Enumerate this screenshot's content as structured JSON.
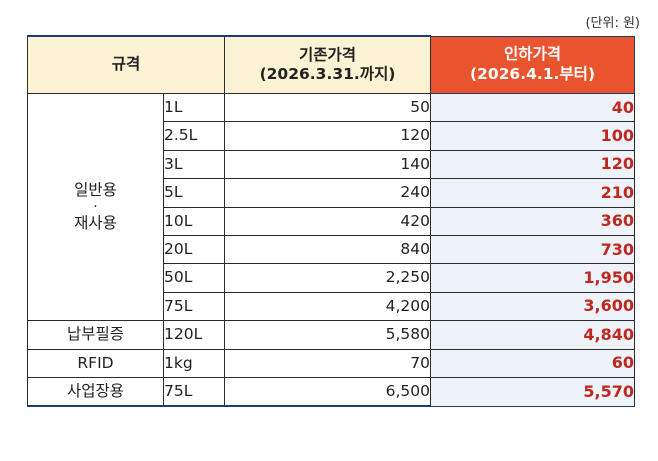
{
  "unit_note": "(단위: 원)",
  "header": {
    "spec": "규격",
    "old_price_line1": "기존가격",
    "old_price_line2": "(2026.3.31.까지)",
    "new_price_line1": "인하가격",
    "new_price_line2": "(2026.4.1.부터)"
  },
  "group_general": {
    "line1": "일반용",
    "separator": "·",
    "line2": "재사용"
  },
  "rows": [
    {
      "category": "",
      "size": "1L",
      "old": "50",
      "new": "40"
    },
    {
      "category": "",
      "size": "2.5L",
      "old": "120",
      "new": "100"
    },
    {
      "category": "",
      "size": "3L",
      "old": "140",
      "new": "120"
    },
    {
      "category": "",
      "size": "5L",
      "old": "240",
      "new": "210"
    },
    {
      "category": "",
      "size": "10L",
      "old": "420",
      "new": "360"
    },
    {
      "category": "",
      "size": "20L",
      "old": "840",
      "new": "730"
    },
    {
      "category": "",
      "size": "50L",
      "old": "2,250",
      "new": "1,950"
    },
    {
      "category": "",
      "size": "75L",
      "old": "4,200",
      "new": "3,600"
    },
    {
      "category": "납부필증",
      "size": "120L",
      "old": "5,580",
      "new": "4,840"
    },
    {
      "category": "RFID",
      "size": "1kg",
      "old": "70",
      "new": "60"
    },
    {
      "category": "사업장용",
      "size": "75L",
      "old": "6,500",
      "new": "5,570"
    }
  ],
  "colors": {
    "header_bg": "#fbf3d3",
    "new_header_bg": "#e9542e",
    "new_value_text": "#c0281f",
    "new_column_bg": "#eef3fa",
    "frame": "#1f3b73"
  }
}
